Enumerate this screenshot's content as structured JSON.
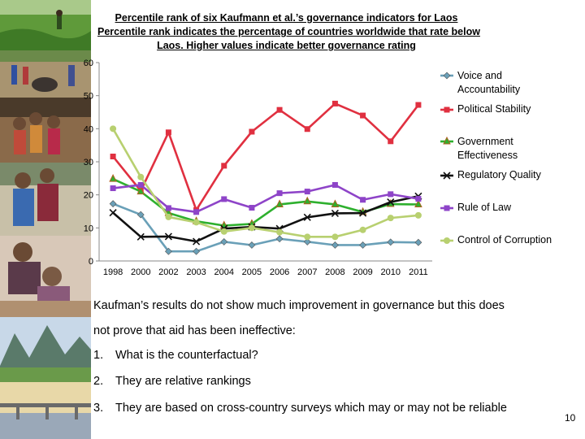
{
  "title": {
    "line1": "Percentile rank of six Kaufmann et al.’s governance indicators for Laos",
    "line2": "Percentile rank indicates the percentage of countries worldwide that rate below",
    "line3": "Laos. Higher values indicate better governance rating"
  },
  "chart_data": {
    "type": "line",
    "categories": [
      "1998",
      "2000",
      "2002",
      "2003",
      "2004",
      "2005",
      "2006",
      "2007",
      "2008",
      "2009",
      "2010",
      "2011"
    ],
    "ylim": [
      0,
      60
    ],
    "yticks": [
      0,
      10,
      20,
      30,
      40,
      50,
      60
    ],
    "grid": false,
    "legend_position": "right",
    "series": [
      {
        "name": "Voice and Accountability",
        "name_lines": [
          "Voice and",
          "Accountability"
        ],
        "color": "#6aa0b8",
        "marker": "diamond",
        "values": [
          17.3,
          14.0,
          2.9,
          2.9,
          5.8,
          4.8,
          6.7,
          5.8,
          4.8,
          4.8,
          5.7,
          5.6
        ]
      },
      {
        "name": "Political Stability",
        "name_lines": [
          "Political Stability"
        ],
        "color": "#e03040",
        "marker": "square",
        "values": [
          31.6,
          21.2,
          38.9,
          15.4,
          28.8,
          39.1,
          45.7,
          39.9,
          47.6,
          44.0,
          36.2,
          47.2
        ]
      },
      {
        "name": "Government Effectiveness",
        "name_lines": [
          "Government",
          "Effectiveness"
        ],
        "color": "#2eb02e",
        "marker": "triangle",
        "values": [
          24.8,
          21.0,
          14.5,
          12.0,
          10.7,
          11.2,
          17.1,
          18.0,
          17.1,
          14.8,
          17.2,
          17.1
        ]
      },
      {
        "name": "Regulatory Quality",
        "name_lines": [
          "Regulatory Quality"
        ],
        "color": "#111111",
        "marker": "x",
        "values": [
          14.6,
          7.3,
          7.4,
          5.9,
          9.8,
          10.3,
          9.8,
          13.2,
          14.4,
          14.5,
          17.8,
          19.6
        ]
      },
      {
        "name": "Rule of Law",
        "name_lines": [
          "Rule of Law"
        ],
        "color": "#8e44c8",
        "marker": "square",
        "values": [
          22.0,
          23.0,
          16.0,
          14.8,
          18.7,
          16.1,
          20.5,
          21.0,
          23.0,
          18.5,
          20.2,
          18.8
        ]
      },
      {
        "name": "Control of Corruption",
        "name_lines": [
          "Control of Corruption"
        ],
        "color": "#b8d070",
        "marker": "circle",
        "values": [
          40.0,
          25.4,
          13.3,
          11.7,
          8.9,
          10.0,
          8.7,
          7.3,
          7.3,
          9.4,
          13.0,
          13.8
        ]
      }
    ]
  },
  "notes": {
    "line1": "Kaufman’s results do not show much improvement in governance but this does",
    "line2": "not prove that aid has been ineffective:"
  },
  "list": [
    {
      "num": "1.",
      "text": "What is the counterfactual?"
    },
    {
      "num": "2.",
      "text": " They are relative rankings"
    },
    {
      "num": "3.",
      "text": "They are based on cross-country surveys which may or may not be reliable"
    }
  ],
  "page_number": "10"
}
